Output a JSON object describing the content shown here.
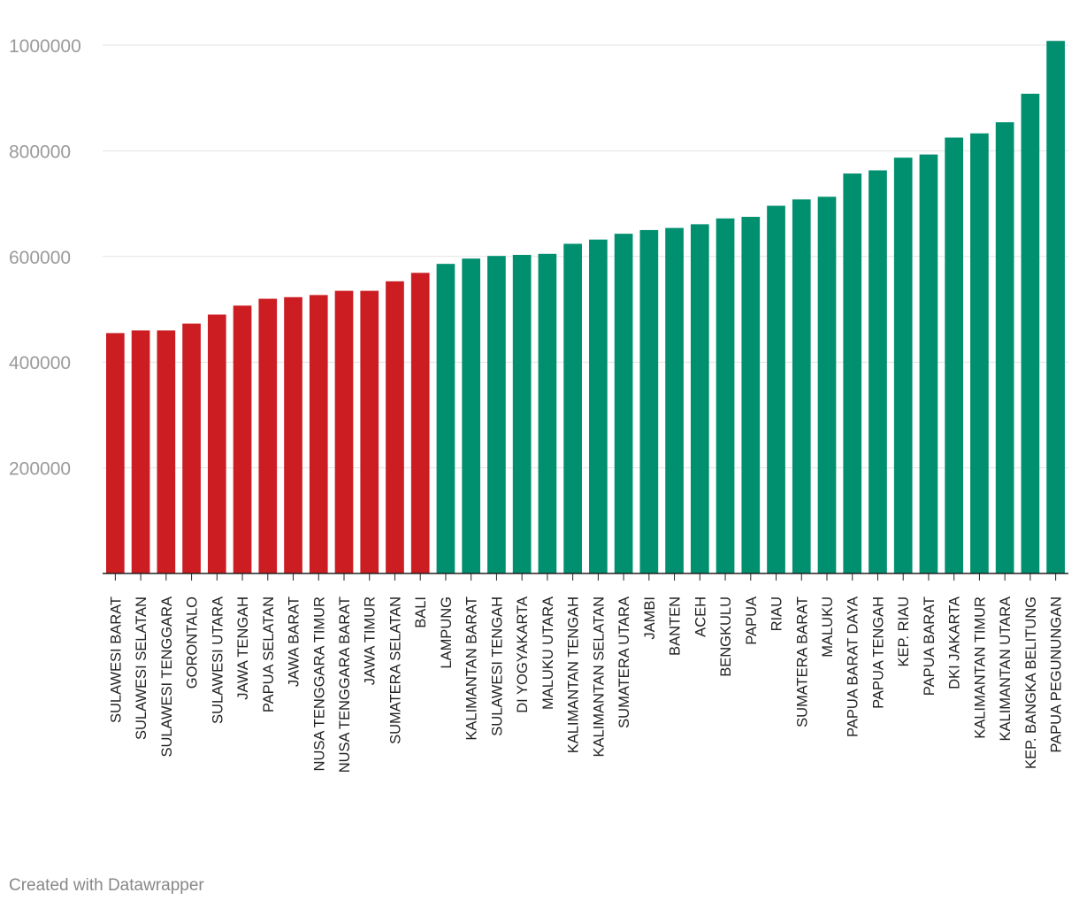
{
  "chart_data": {
    "type": "bar",
    "categories": [
      "SULAWESI BARAT",
      "SULAWESI SELATAN",
      "SULAWESI TENGGARA",
      "GORONTALO",
      "SULAWESI UTARA",
      "JAWA TENGAH",
      "PAPUA SELATAN",
      "JAWA BARAT",
      "NUSA TENGGARA TIMUR",
      "NUSA TENGGARA BARAT",
      "JAWA TIMUR",
      "SUMATERA SELATAN",
      "BALI",
      "LAMPUNG",
      "KALIMANTAN BARAT",
      "SULAWESI TENGAH",
      "DI YOGYAKARTA",
      "MALUKU UTARA",
      "KALIMANTAN TENGAH",
      "KALIMANTAN SELATAN",
      "SUMATERA UTARA",
      "JAMBI",
      "BANTEN",
      "ACEH",
      "BENGKULU",
      "PAPUA",
      "RIAU",
      "SUMATERA BARAT",
      "MALUKU",
      "PAPUA BARAT DAYA",
      "PAPUA TENGAH",
      "KEP. RIAU",
      "PAPUA BARAT",
      "DKI JAKARTA",
      "KALIMANTAN TIMUR",
      "KALIMANTAN UTARA",
      "KEP. BANGKA BELITUNG",
      "PAPUA PEGUNUNGAN"
    ],
    "values": [
      455000,
      460000,
      460000,
      473000,
      490000,
      507000,
      520000,
      523000,
      527000,
      535000,
      535000,
      553000,
      569000,
      586000,
      596000,
      601000,
      603000,
      605000,
      624000,
      632000,
      643000,
      650000,
      654000,
      661000,
      672000,
      675000,
      696000,
      708000,
      713000,
      757000,
      763000,
      787000,
      793000,
      825000,
      833000,
      854000,
      908000,
      1008000
    ],
    "colors": [
      "#cc1e22",
      "#cc1e22",
      "#cc1e22",
      "#cc1e22",
      "#cc1e22",
      "#cc1e22",
      "#cc1e22",
      "#cc1e22",
      "#cc1e22",
      "#cc1e22",
      "#cc1e22",
      "#cc1e22",
      "#cc1e22",
      "#008f6f",
      "#008f6f",
      "#008f6f",
      "#008f6f",
      "#008f6f",
      "#008f6f",
      "#008f6f",
      "#008f6f",
      "#008f6f",
      "#008f6f",
      "#008f6f",
      "#008f6f",
      "#008f6f",
      "#008f6f",
      "#008f6f",
      "#008f6f",
      "#008f6f",
      "#008f6f",
      "#008f6f",
      "#008f6f",
      "#008f6f",
      "#008f6f",
      "#008f6f",
      "#008f6f",
      "#008f6f"
    ],
    "yticks": [
      200000,
      400000,
      600000,
      800000,
      1000000
    ],
    "ytick_labels": [
      "200000",
      "400000",
      "600000",
      "800000",
      "1000000"
    ],
    "ylim": [
      0,
      1008000
    ],
    "grid": true,
    "legend": "none"
  },
  "footer": {
    "credit": "Created with Datawrapper"
  }
}
